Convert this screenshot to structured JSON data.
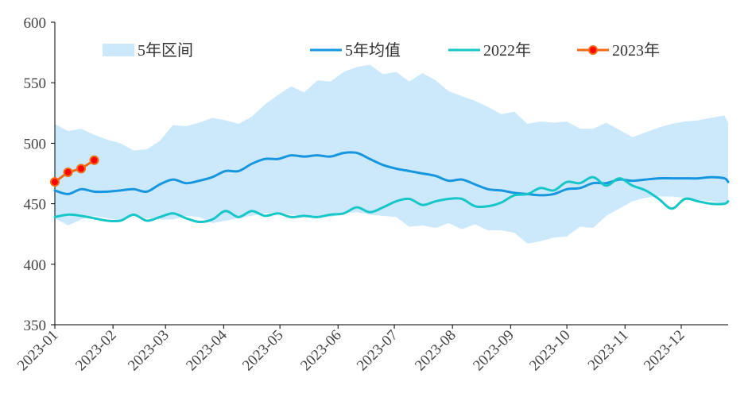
{
  "chart_data": {
    "type": "line",
    "title": "",
    "xlabel": "",
    "ylabel": "",
    "ylim": [
      350,
      600
    ],
    "y_ticks": [
      350,
      400,
      450,
      500,
      550,
      600
    ],
    "x_range": [
      "2023-01-01",
      "2023-12-26"
    ],
    "x_tick_labels": [
      "2023-01",
      "2023-02",
      "2023-03",
      "2023-04",
      "2023-05",
      "2023-06",
      "2023-07",
      "2023-08",
      "2023-09",
      "2023-10",
      "2023-11",
      "2023-12"
    ],
    "x_tick_dates": [
      "2023-01-01",
      "2023-02-01",
      "2023-03-01",
      "2023-04-01",
      "2023-05-01",
      "2023-06-01",
      "2023-07-01",
      "2023-08-01",
      "2023-09-01",
      "2023-10-01",
      "2023-11-01",
      "2023-12-01"
    ],
    "grid": false,
    "legend_position": "top",
    "band": {
      "name": "5年区间",
      "color": "#cce9fb",
      "x": [
        "2023-01-01",
        "2023-01-08",
        "2023-01-15",
        "2023-01-22",
        "2023-01-29",
        "2023-02-05",
        "2023-02-12",
        "2023-02-19",
        "2023-02-26",
        "2023-03-05",
        "2023-03-12",
        "2023-03-19",
        "2023-03-26",
        "2023-04-02",
        "2023-04-09",
        "2023-04-16",
        "2023-04-23",
        "2023-04-30",
        "2023-05-07",
        "2023-05-14",
        "2023-05-21",
        "2023-05-28",
        "2023-06-04",
        "2023-06-11",
        "2023-06-18",
        "2023-06-25",
        "2023-07-02",
        "2023-07-09",
        "2023-07-16",
        "2023-07-23",
        "2023-07-30",
        "2023-08-06",
        "2023-08-13",
        "2023-08-20",
        "2023-08-27",
        "2023-09-03",
        "2023-09-10",
        "2023-09-17",
        "2023-09-24",
        "2023-10-01",
        "2023-10-08",
        "2023-10-15",
        "2023-10-22",
        "2023-10-29",
        "2023-11-05",
        "2023-11-12",
        "2023-11-19",
        "2023-11-26",
        "2023-12-03",
        "2023-12-10",
        "2023-12-17",
        "2023-12-24",
        "2023-12-26"
      ],
      "upper": [
        516,
        510,
        512,
        507,
        503,
        500,
        494,
        495,
        502,
        515,
        514,
        517,
        521,
        519,
        516,
        522,
        532,
        540,
        547,
        542,
        552,
        551,
        559,
        563,
        565,
        557,
        559,
        551,
        558,
        552,
        543,
        539,
        535,
        530,
        524,
        526,
        516,
        518,
        517,
        518,
        512,
        512,
        517,
        511,
        505,
        509,
        513,
        516,
        518,
        519,
        521,
        523,
        517
      ],
      "lower": [
        438,
        432,
        437,
        440,
        438,
        436,
        440,
        438,
        437,
        437,
        440,
        439,
        434,
        436,
        438,
        440,
        442,
        443,
        441,
        440,
        439,
        439,
        442,
        443,
        441,
        440,
        439,
        431,
        432,
        430,
        434,
        429,
        433,
        428,
        428,
        426,
        417,
        419,
        422,
        423,
        431,
        430,
        440,
        446,
        452,
        455,
        456,
        456,
        455,
        453,
        452,
        450,
        450
      ]
    },
    "series": [
      {
        "name": "5年均值",
        "color": "#1796e0",
        "marker": false,
        "x": [
          "2023-01-01",
          "2023-01-08",
          "2023-01-15",
          "2023-01-22",
          "2023-01-29",
          "2023-02-05",
          "2023-02-12",
          "2023-02-19",
          "2023-02-26",
          "2023-03-05",
          "2023-03-12",
          "2023-03-19",
          "2023-03-26",
          "2023-04-02",
          "2023-04-09",
          "2023-04-16",
          "2023-04-23",
          "2023-04-30",
          "2023-05-07",
          "2023-05-14",
          "2023-05-21",
          "2023-05-28",
          "2023-06-04",
          "2023-06-11",
          "2023-06-18",
          "2023-06-25",
          "2023-07-02",
          "2023-07-09",
          "2023-07-16",
          "2023-07-23",
          "2023-07-30",
          "2023-08-06",
          "2023-08-13",
          "2023-08-20",
          "2023-08-27",
          "2023-09-03",
          "2023-09-10",
          "2023-09-17",
          "2023-09-24",
          "2023-10-01",
          "2023-10-08",
          "2023-10-15",
          "2023-10-22",
          "2023-10-29",
          "2023-11-05",
          "2023-11-12",
          "2023-11-19",
          "2023-11-26",
          "2023-12-03",
          "2023-12-10",
          "2023-12-17",
          "2023-12-24",
          "2023-12-26"
        ],
        "values": [
          461,
          458,
          462,
          460,
          460,
          461,
          462,
          460,
          466,
          470,
          467,
          469,
          472,
          477,
          477,
          483,
          487,
          487,
          490,
          489,
          490,
          489,
          492,
          492,
          487,
          482,
          479,
          477,
          475,
          473,
          469,
          470,
          466,
          462,
          461,
          459,
          458,
          457,
          458,
          462,
          463,
          467,
          467,
          470,
          469,
          470,
          471,
          471,
          471,
          471,
          472,
          471,
          468
        ]
      },
      {
        "name": "2022年",
        "color": "#17c6c8",
        "marker": false,
        "x": [
          "2023-01-01",
          "2023-01-08",
          "2023-01-15",
          "2023-01-22",
          "2023-01-29",
          "2023-02-05",
          "2023-02-12",
          "2023-02-19",
          "2023-02-26",
          "2023-03-05",
          "2023-03-12",
          "2023-03-19",
          "2023-03-26",
          "2023-04-02",
          "2023-04-09",
          "2023-04-16",
          "2023-04-23",
          "2023-04-30",
          "2023-05-07",
          "2023-05-14",
          "2023-05-21",
          "2023-05-28",
          "2023-06-04",
          "2023-06-11",
          "2023-06-18",
          "2023-06-25",
          "2023-07-02",
          "2023-07-09",
          "2023-07-16",
          "2023-07-23",
          "2023-07-30",
          "2023-08-06",
          "2023-08-13",
          "2023-08-20",
          "2023-08-27",
          "2023-09-03",
          "2023-09-10",
          "2023-09-17",
          "2023-09-24",
          "2023-10-01",
          "2023-10-08",
          "2023-10-15",
          "2023-10-22",
          "2023-10-29",
          "2023-11-05",
          "2023-11-12",
          "2023-11-19",
          "2023-11-26",
          "2023-12-03",
          "2023-12-10",
          "2023-12-17",
          "2023-12-24",
          "2023-12-26"
        ],
        "values": [
          439,
          441,
          440,
          438,
          436,
          436,
          441,
          436,
          439,
          442,
          438,
          435,
          437,
          444,
          439,
          444,
          440,
          442,
          439,
          440,
          439,
          441,
          442,
          447,
          443,
          447,
          452,
          454,
          449,
          452,
          454,
          454,
          448,
          448,
          451,
          457,
          458,
          463,
          461,
          468,
          467,
          472,
          465,
          471,
          465,
          461,
          454,
          446,
          454,
          452,
          450,
          450,
          452
        ]
      },
      {
        "name": "2023年",
        "color": "#f26a12",
        "marker": true,
        "marker_color": "#ff0000",
        "x": [
          "2023-01-01",
          "2023-01-08",
          "2023-01-15",
          "2023-01-22"
        ],
        "values": [
          468,
          476,
          479,
          486
        ]
      }
    ]
  }
}
